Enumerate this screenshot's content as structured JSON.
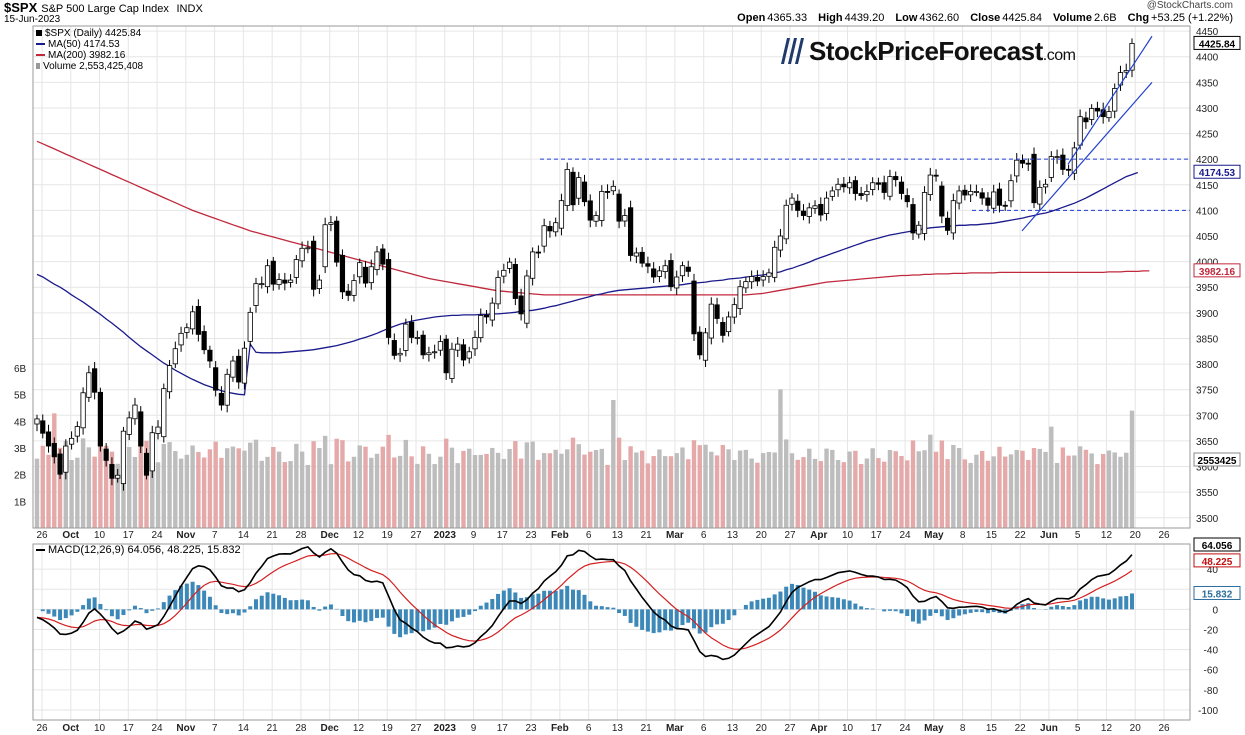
{
  "header": {
    "ticker": "$SPX",
    "name": "S&P 500 Large Cap Index",
    "exchange": "INDX",
    "date": "15-Jun-2023",
    "open_label": "Open",
    "open": "4365.33",
    "high_label": "High",
    "high": "4439.20",
    "low_label": "Low",
    "low": "4362.60",
    "close_label": "Close",
    "close": "4425.84",
    "volume_label": "Volume",
    "volume": "2.6B",
    "chg_label": "Chg",
    "chg": "+53.25 (+1.22%)",
    "credit": "@StockCharts.com"
  },
  "legend": {
    "spx": "$SPX (Daily) 4425.84",
    "ma50": "MA(50) 4174.53",
    "ma200": "MA(200) 3982.16",
    "volume": "Volume 2,553,425,408"
  },
  "logo": {
    "main": "StockPriceForecast",
    "suffix": ".com"
  },
  "colors": {
    "up": "#ffffff",
    "down": "#000000",
    "candle_outline": "#000000",
    "ma50": "#1a1a8c",
    "ma200": "#c0283c",
    "trend": "#1f3fd0",
    "vol_up": "#bdbdbd",
    "vol_down": "#e5a9a9",
    "macd": "#000000",
    "signal": "#d42020",
    "hist": "#3c88b8",
    "grid": "#e6e6e6"
  },
  "chart_data": [
    {
      "type": "candlestick",
      "title": "$SPX (Daily) 4425.84",
      "ylim": [
        3480,
        4460
      ],
      "y_ticks": [
        3500,
        3550,
        3600,
        3650,
        3700,
        3750,
        3800,
        3850,
        3900,
        3950,
        4000,
        4050,
        4100,
        4150,
        4200,
        4250,
        4300,
        4350,
        4400,
        4450
      ],
      "y_tick_labels": [
        "3500",
        "3550",
        "3600",
        "3650",
        "3700",
        "3750",
        "3800",
        "3850",
        "3900",
        "3950",
        "4000",
        "4050",
        "4100",
        "4150",
        "4200",
        "4250",
        "4300",
        "4350",
        "4400",
        "4450"
      ],
      "x_ticks": [
        "26",
        "Oct",
        "10",
        "17",
        "24",
        "Nov",
        "7",
        "14",
        "21",
        "28",
        "Dec",
        "12",
        "19",
        "27",
        "2023",
        "9",
        "17",
        "23",
        "Feb",
        "6",
        "13",
        "21",
        "Mar",
        "6",
        "13",
        "20",
        "27",
        "Apr",
        "10",
        "17",
        "24",
        "May",
        "8",
        "15",
        "22",
        "Jun",
        "5",
        "12",
        "20",
        "26"
      ],
      "closes": [
        3693,
        3665,
        3640,
        3619,
        3585,
        3640,
        3655,
        3678,
        3744,
        3783,
        3745,
        3640,
        3612,
        3577,
        3583,
        3669,
        3695,
        3720,
        3640,
        3583,
        3666,
        3677,
        3752,
        3797,
        3830,
        3860,
        3871,
        3902,
        3858,
        3828,
        3806,
        3749,
        3720,
        3780,
        3806,
        3765,
        3831,
        3901,
        3957,
        3957,
        3992,
        3956,
        3965,
        3958,
        3964,
        4004,
        4026,
        4027,
        3946,
        3964,
        4072,
        4076,
        3999,
        3941,
        3934,
        3963,
        3998,
        3958,
        3990,
        4019,
        3995,
        3852,
        3817,
        3821,
        3878,
        3852,
        3852,
        3818,
        3822,
        3824,
        3844,
        3783,
        3829,
        3839,
        3808,
        3824,
        3852,
        3895,
        3892,
        3919,
        3969,
        3983,
        3999,
        3928,
        3898,
        3972,
        4019,
        4017,
        4070,
        4060,
        4076,
        4119,
        4180,
        4111,
        4164,
        4117,
        4081,
        4090,
        4137,
        4136,
        4147,
        4079,
        4090,
        4012,
        4017,
        3997,
        3991,
        3970,
        3982,
        3992,
        3951,
        3970,
        3992,
        3981,
        3859,
        3818,
        3861,
        3917,
        3889,
        3856,
        3892,
        3916,
        3951,
        3961,
        3971,
        3962,
        3971,
        3978,
        4028,
        4050,
        4110,
        4124,
        4100,
        4090,
        4105,
        4109,
        4091,
        4124,
        4138,
        4151,
        4146,
        4154,
        4133,
        4129,
        4137,
        4154,
        4151,
        4135,
        4166,
        4160,
        4133,
        4117,
        4056,
        4071,
        4135,
        4169,
        4167,
        4089,
        4061,
        4119,
        4138,
        4130,
        4137,
        4137,
        4124,
        4110,
        4136,
        4110,
        4109,
        4158,
        4198,
        4192,
        4191,
        4115,
        4145,
        4151,
        4205,
        4205,
        4180,
        4179,
        4222,
        4283,
        4273,
        4299,
        4294,
        4283,
        4293,
        4338,
        4369,
        4373,
        4426
      ],
      "ma50": [
        3975,
        3970,
        3963,
        3956,
        3950,
        3943,
        3935,
        3928,
        3921,
        3913,
        3905,
        3897,
        3888,
        3880,
        3871,
        3862,
        3852,
        3843,
        3834,
        3826,
        3818,
        3810,
        3802,
        3795,
        3788,
        3782,
        3776,
        3770,
        3765,
        3760,
        3756,
        3752,
        3748,
        3745,
        3743,
        3741,
        3740,
        3839,
        3823,
        3822,
        3822,
        3822,
        3822,
        3823,
        3824,
        3825,
        3826,
        3827,
        3828,
        3830,
        3832,
        3834,
        3836,
        3839,
        3842,
        3845,
        3849,
        3852,
        3856,
        3860,
        3865,
        3870,
        3874,
        3878,
        3881,
        3884,
        3886,
        3888,
        3890,
        3892,
        3893,
        3894,
        3895,
        3895,
        3896,
        3896,
        3896,
        3897,
        3897,
        3898,
        3898,
        3899,
        3900,
        3901,
        3903,
        3904,
        3905,
        3907,
        3909,
        3912,
        3914,
        3917,
        3920,
        3923,
        3926,
        3929,
        3932,
        3935,
        3937,
        3940,
        3942,
        3944,
        3945,
        3946,
        3947,
        3948,
        3949,
        3950,
        3951,
        3952,
        3953,
        3954,
        3955,
        3957,
        3958,
        3959,
        3960,
        3962,
        3963,
        3964,
        3966,
        3967,
        3968,
        3970,
        3971,
        3973,
        3974,
        3976,
        3978,
        3980,
        3984,
        3987,
        3991,
        3995,
        3999,
        4004,
        4008,
        4012,
        4016,
        4020,
        4024,
        4028,
        4032,
        4036,
        4040,
        4043,
        4046,
        4049,
        4052,
        4054,
        4056,
        4058,
        4060,
        4062,
        4064,
        4066,
        4067,
        4068,
        4069,
        4070,
        4071,
        4071,
        4072,
        4072,
        4073,
        4074,
        4075,
        4077,
        4079,
        4081,
        4083,
        4085,
        4088,
        4090,
        4093,
        4095,
        4098,
        4102,
        4106,
        4110,
        4114,
        4119,
        4124,
        4130,
        4136,
        4142,
        4148,
        4154,
        4160,
        4166,
        4170,
        4174
      ],
      "ma200": [
        4235,
        4230,
        4225,
        4220,
        4215,
        4210,
        4205,
        4200,
        4195,
        4190,
        4185,
        4180,
        4175,
        4170,
        4165,
        4160,
        4155,
        4150,
        4145,
        4140,
        4135,
        4130,
        4125,
        4120,
        4115,
        4110,
        4105,
        4100,
        4096,
        4092,
        4088,
        4084,
        4080,
        4076,
        4072,
        4068,
        4064,
        4060,
        4057,
        4054,
        4051,
        4048,
        4045,
        4042,
        4039,
        4036,
        4033,
        4030,
        4027,
        4024,
        4021,
        4018,
        4015,
        4012,
        4009,
        4006,
        4003,
        4000,
        3997,
        3994,
        3991,
        3988,
        3985,
        3982,
        3979,
        3976,
        3973,
        3970,
        3967,
        3965,
        3963,
        3961,
        3959,
        3957,
        3955,
        3953,
        3951,
        3949,
        3947,
        3945,
        3943,
        3942,
        3941,
        3940,
        3939,
        3938,
        3937,
        3936,
        3935,
        3935,
        3935,
        3935,
        3935,
        3935,
        3935,
        3935,
        3935,
        3935,
        3935,
        3935,
        3935,
        3935,
        3935,
        3935,
        3935,
        3935,
        3935,
        3935,
        3935,
        3935,
        3935,
        3935,
        3935,
        3935,
        3935,
        3935,
        3935,
        3935,
        3935,
        3935,
        3935,
        3935,
        3935,
        3935,
        3936,
        3937,
        3938,
        3940,
        3942,
        3944,
        3946,
        3948,
        3950,
        3952,
        3954,
        3956,
        3958,
        3960,
        3961,
        3962,
        3963,
        3964,
        3965,
        3966,
        3967,
        3968,
        3969,
        3970,
        3971,
        3972,
        3973,
        3973,
        3974,
        3974,
        3975,
        3975,
        3976,
        3976,
        3976,
        3977,
        3977,
        3977,
        3978,
        3978,
        3978,
        3978,
        3978,
        3979,
        3979,
        3979,
        3979,
        3979,
        3979,
        3979,
        3979,
        3979,
        3979,
        3979,
        3979,
        3979,
        3979,
        3979,
        3979,
        3979,
        3979,
        3979,
        3980,
        3980,
        3980,
        3981,
        3981,
        3981,
        3982,
        3982
      ]
    },
    {
      "type": "bar",
      "title": "Volume 2,553,425,408",
      "ylim": [
        0,
        6
      ],
      "unit": "B",
      "y_tick_labels": [
        "1B",
        "2B",
        "3B",
        "4B",
        "5B",
        "6B"
      ],
      "right_label": "2553425"
    },
    {
      "type": "line",
      "title": "MACD(12,26,9) 64.056, 48.225, 15.832",
      "legend_text": "MACD(12,26,9) 64.056, 48.225, 15.832",
      "ylim": [
        -110,
        65
      ],
      "y_ticks": [
        -100,
        -80,
        -60,
        -40,
        -20,
        0,
        20,
        40
      ],
      "y_tick_labels": [
        "-100",
        "-80",
        "-60",
        "-40",
        "-20",
        "0",
        "20",
        "40"
      ],
      "macd_label": "64.056",
      "signal_label": "48.225",
      "hist_label": "15.832"
    }
  ],
  "badges": {
    "close": "4425.84",
    "ma50": "4174.53",
    "ma200": "3982.16",
    "volume": "2553425"
  }
}
